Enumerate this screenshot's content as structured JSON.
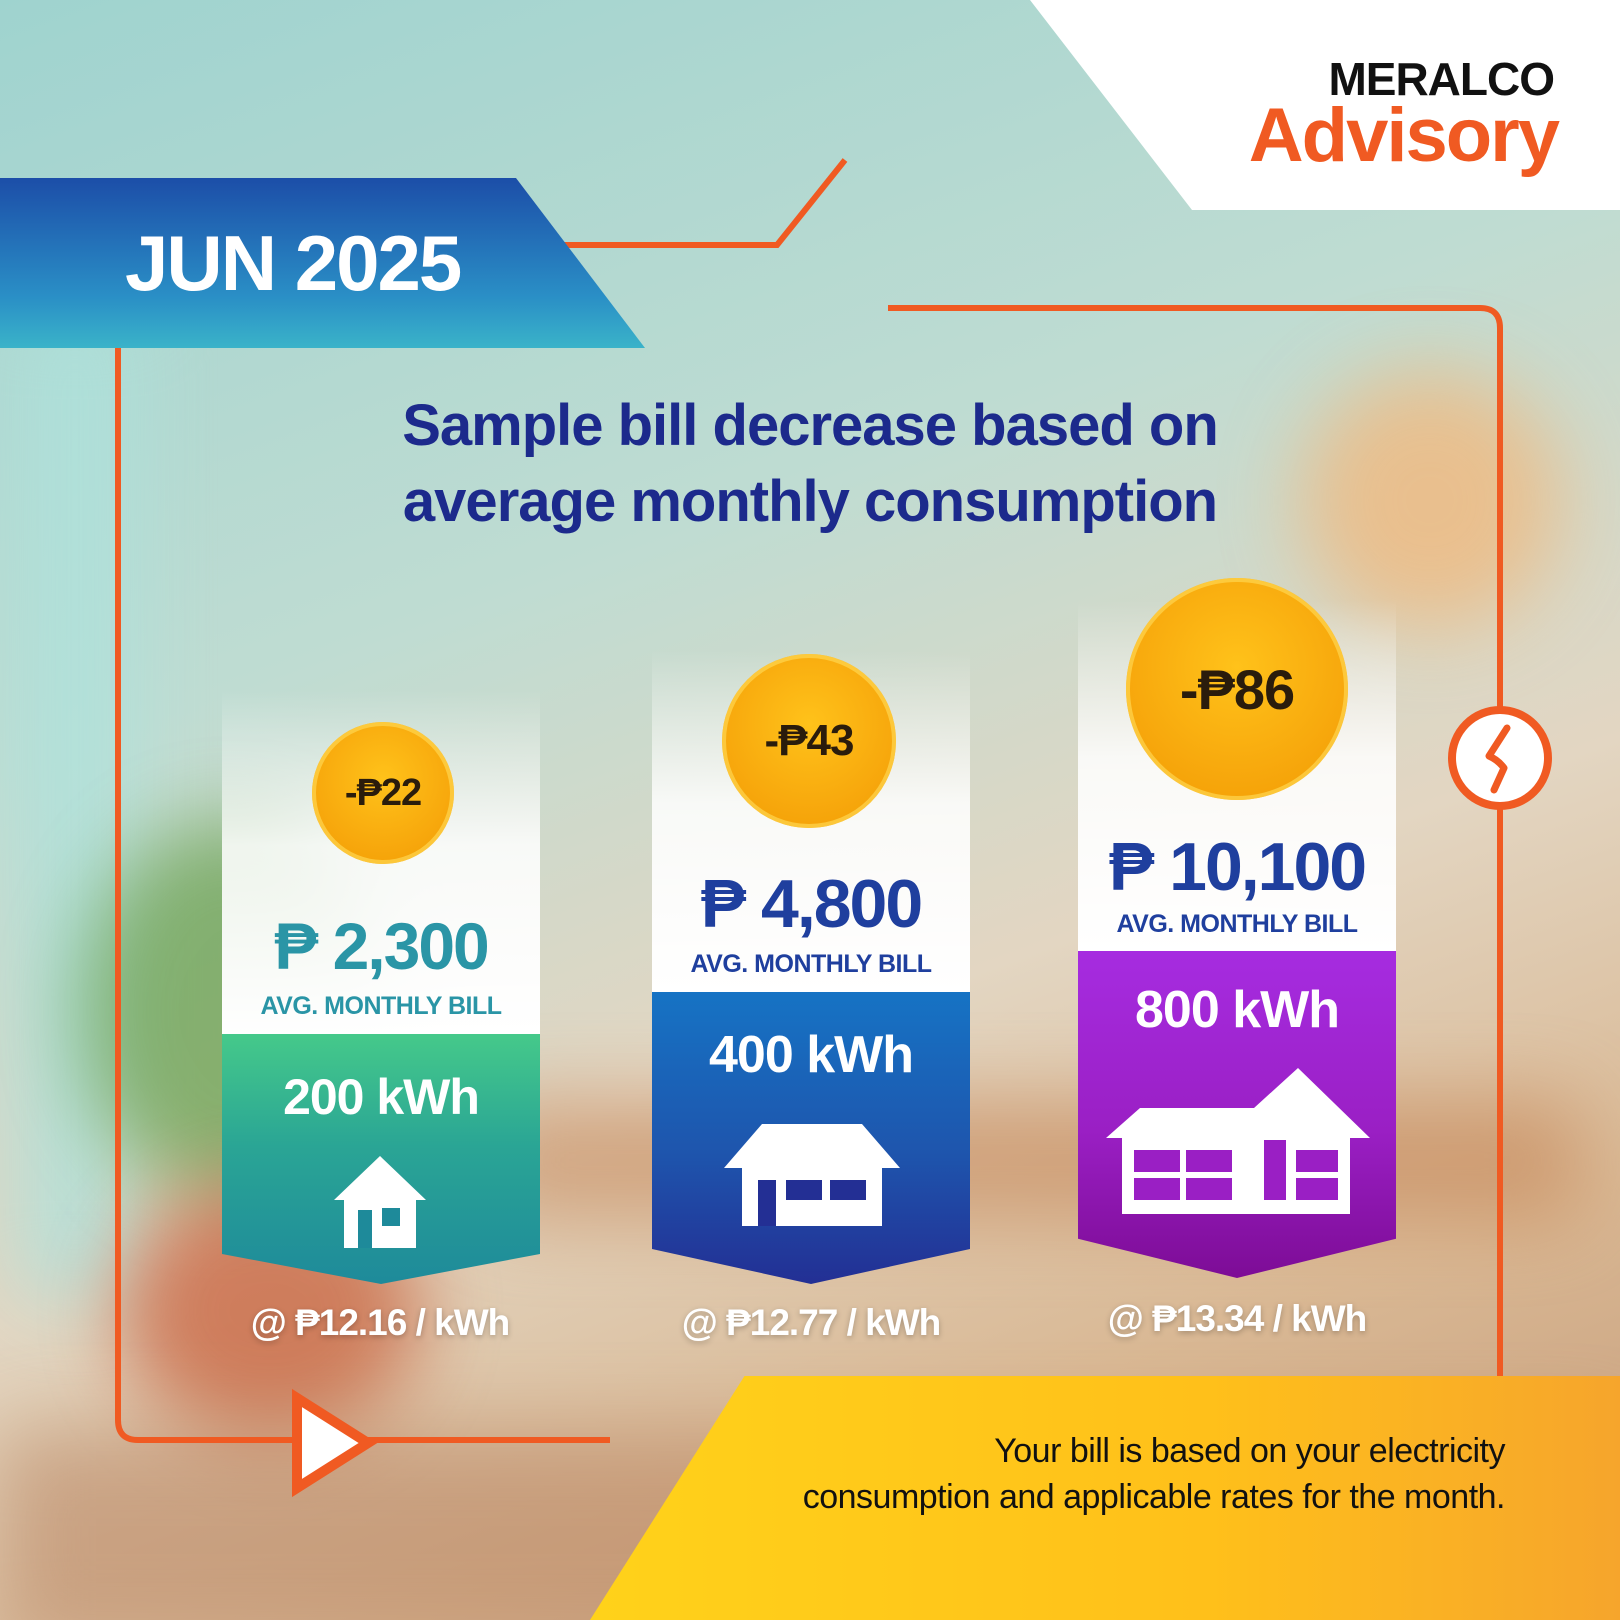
{
  "brand": {
    "name": "MERALCO",
    "sub": "Advisory"
  },
  "date": "JUN 2025",
  "headline": [
    "Sample bill decrease based on",
    "average monthly consumption"
  ],
  "cards": [
    {
      "decrease": "-₱22",
      "amount": "₱ 2,300",
      "label": "AVG. MONTHLY BILL",
      "kwh": "200 kWh",
      "rate": "@ ₱12.16 / kWh"
    },
    {
      "decrease": "-₱43",
      "amount": "₱ 4,800",
      "label": "AVG. MONTHLY BILL",
      "kwh": "400 kWh",
      "rate": "@ ₱12.77 / kWh"
    },
    {
      "decrease": "-₱86",
      "amount": "₱ 10,100",
      "label": "AVG. MONTHLY BILL",
      "kwh": "800 kWh",
      "rate": "@ ₱13.34 / kWh"
    }
  ],
  "footer": [
    "Your bill is based on your electricity",
    "consumption and applicable rates for the month."
  ],
  "colors": {
    "accent_orange": "#f05a22",
    "title_blue": "#1c2a8c",
    "card1": "#2a9aa0",
    "card2": "#1f4ea8",
    "card3": "#9a1fc4",
    "coin": "#f7a70c"
  },
  "icons": [
    "small-house-icon",
    "medium-house-icon",
    "large-house-icon",
    "lightning-bolt-icon",
    "play-arrow-icon"
  ]
}
